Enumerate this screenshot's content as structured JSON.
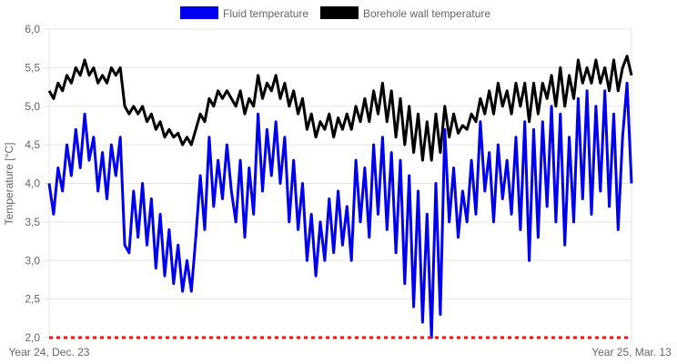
{
  "chart_data": {
    "type": "line",
    "ylabel": "Temperature [°C]",
    "ylim": [
      2.0,
      6.0
    ],
    "y_ticks": [
      "2,0",
      "2,5",
      "3,0",
      "3,5",
      "4,0",
      "4,5",
      "5,0",
      "5,5",
      "6,0"
    ],
    "x_tick_labels": [
      "Year 24, Dec. 23",
      "Year 25, Mar. 13"
    ],
    "grid": true,
    "legend_position": "top-center",
    "threshold": {
      "value": 2.0,
      "color": "#ee1111",
      "style": "dashed"
    },
    "series": [
      {
        "name": "Fluid temperature",
        "color": "#0000ee",
        "keyframes": [
          [
            0,
            4.0
          ],
          [
            2,
            3.6
          ],
          [
            4,
            4.2
          ],
          [
            6,
            3.9
          ],
          [
            8,
            4.5
          ],
          [
            10,
            4.1
          ],
          [
            12,
            4.7
          ],
          [
            14,
            4.2
          ],
          [
            16,
            4.9
          ],
          [
            18,
            4.3
          ],
          [
            20,
            4.6
          ],
          [
            22,
            3.9
          ],
          [
            24,
            4.4
          ],
          [
            26,
            3.8
          ],
          [
            28,
            4.5
          ],
          [
            30,
            4.1
          ],
          [
            32,
            4.6
          ],
          [
            34,
            3.2
          ],
          [
            36,
            3.1
          ],
          [
            38,
            3.9
          ],
          [
            40,
            3.3
          ],
          [
            42,
            4.0
          ],
          [
            44,
            3.2
          ],
          [
            46,
            3.8
          ],
          [
            48,
            2.9
          ],
          [
            50,
            3.6
          ],
          [
            52,
            2.8
          ],
          [
            54,
            3.4
          ],
          [
            56,
            2.7
          ],
          [
            58,
            3.2
          ],
          [
            60,
            2.6
          ],
          [
            62,
            3.0
          ],
          [
            64,
            2.6
          ],
          [
            66,
            3.3
          ],
          [
            68,
            4.1
          ],
          [
            70,
            3.4
          ],
          [
            72,
            4.6
          ],
          [
            74,
            3.7
          ],
          [
            76,
            4.3
          ],
          [
            78,
            3.8
          ],
          [
            80,
            4.5
          ],
          [
            82,
            3.9
          ],
          [
            84,
            3.5
          ],
          [
            86,
            4.3
          ],
          [
            88,
            3.3
          ],
          [
            90,
            4.2
          ],
          [
            92,
            3.6
          ],
          [
            94,
            4.9
          ],
          [
            96,
            3.9
          ],
          [
            98,
            4.7
          ],
          [
            100,
            4.1
          ],
          [
            102,
            4.8
          ],
          [
            104,
            4.0
          ],
          [
            106,
            4.6
          ],
          [
            108,
            3.5
          ],
          [
            110,
            4.3
          ],
          [
            112,
            3.4
          ],
          [
            114,
            4.0
          ],
          [
            116,
            3.0
          ],
          [
            118,
            3.6
          ],
          [
            120,
            2.8
          ],
          [
            122,
            3.5
          ],
          [
            124,
            3.0
          ],
          [
            126,
            3.8
          ],
          [
            128,
            3.1
          ],
          [
            130,
            3.9
          ],
          [
            132,
            3.2
          ],
          [
            134,
            3.7
          ],
          [
            136,
            3.0
          ],
          [
            138,
            4.3
          ],
          [
            140,
            3.5
          ],
          [
            142,
            4.2
          ],
          [
            144,
            3.3
          ],
          [
            146,
            4.5
          ],
          [
            148,
            3.6
          ],
          [
            150,
            4.6
          ],
          [
            152,
            3.4
          ],
          [
            154,
            4.4
          ],
          [
            156,
            3.1
          ],
          [
            158,
            4.3
          ],
          [
            160,
            2.7
          ],
          [
            162,
            4.1
          ],
          [
            164,
            2.4
          ],
          [
            166,
            3.9
          ],
          [
            168,
            2.2
          ],
          [
            170,
            3.6
          ],
          [
            172,
            2.0
          ],
          [
            174,
            4.0
          ],
          [
            176,
            2.3
          ],
          [
            178,
            4.7
          ],
          [
            180,
            3.5
          ],
          [
            182,
            4.2
          ],
          [
            184,
            3.3
          ],
          [
            186,
            3.9
          ],
          [
            188,
            3.5
          ],
          [
            190,
            4.3
          ],
          [
            192,
            3.6
          ],
          [
            194,
            4.8
          ],
          [
            196,
            3.9
          ],
          [
            198,
            4.4
          ],
          [
            200,
            3.5
          ],
          [
            202,
            4.5
          ],
          [
            204,
            3.8
          ],
          [
            206,
            4.3
          ],
          [
            208,
            3.6
          ],
          [
            210,
            4.6
          ],
          [
            212,
            3.4
          ],
          [
            214,
            4.8
          ],
          [
            216,
            3.0
          ],
          [
            218,
            4.7
          ],
          [
            220,
            3.3
          ],
          [
            222,
            4.8
          ],
          [
            224,
            3.7
          ],
          [
            226,
            5.0
          ],
          [
            228,
            3.5
          ],
          [
            230,
            4.9
          ],
          [
            232,
            3.2
          ],
          [
            234,
            4.6
          ],
          [
            236,
            3.5
          ],
          [
            238,
            5.1
          ],
          [
            240,
            3.8
          ],
          [
            242,
            5.2
          ],
          [
            244,
            3.6
          ],
          [
            246,
            5.0
          ],
          [
            248,
            3.9
          ],
          [
            250,
            5.2
          ],
          [
            252,
            3.7
          ],
          [
            254,
            4.9
          ],
          [
            256,
            3.4
          ],
          [
            258,
            4.6
          ],
          [
            260,
            5.3
          ],
          [
            262,
            4.0
          ]
        ]
      },
      {
        "name": "Borehole wall temperature",
        "color": "#000000",
        "keyframes": [
          [
            0,
            5.2
          ],
          [
            2,
            5.1
          ],
          [
            4,
            5.3
          ],
          [
            6,
            5.2
          ],
          [
            8,
            5.4
          ],
          [
            10,
            5.3
          ],
          [
            12,
            5.5
          ],
          [
            14,
            5.4
          ],
          [
            16,
            5.6
          ],
          [
            18,
            5.4
          ],
          [
            20,
            5.5
          ],
          [
            22,
            5.3
          ],
          [
            24,
            5.4
          ],
          [
            26,
            5.3
          ],
          [
            28,
            5.5
          ],
          [
            30,
            5.4
          ],
          [
            32,
            5.5
          ],
          [
            34,
            5.0
          ],
          [
            36,
            4.9
          ],
          [
            38,
            5.0
          ],
          [
            40,
            4.9
          ],
          [
            42,
            5.0
          ],
          [
            44,
            4.8
          ],
          [
            46,
            4.9
          ],
          [
            48,
            4.7
          ],
          [
            50,
            4.8
          ],
          [
            52,
            4.6
          ],
          [
            54,
            4.7
          ],
          [
            56,
            4.6
          ],
          [
            58,
            4.65
          ],
          [
            60,
            4.5
          ],
          [
            62,
            4.6
          ],
          [
            64,
            4.5
          ],
          [
            66,
            4.7
          ],
          [
            68,
            4.9
          ],
          [
            70,
            4.8
          ],
          [
            72,
            5.1
          ],
          [
            74,
            5.0
          ],
          [
            76,
            5.2
          ],
          [
            78,
            5.1
          ],
          [
            80,
            5.2
          ],
          [
            82,
            5.1
          ],
          [
            84,
            5.0
          ],
          [
            86,
            5.2
          ],
          [
            88,
            4.9
          ],
          [
            90,
            5.1
          ],
          [
            92,
            5.0
          ],
          [
            94,
            5.4
          ],
          [
            96,
            5.1
          ],
          [
            98,
            5.3
          ],
          [
            100,
            5.2
          ],
          [
            102,
            5.4
          ],
          [
            104,
            5.1
          ],
          [
            106,
            5.3
          ],
          [
            108,
            5.0
          ],
          [
            110,
            5.2
          ],
          [
            112,
            4.9
          ],
          [
            114,
            5.1
          ],
          [
            116,
            4.7
          ],
          [
            118,
            4.9
          ],
          [
            120,
            4.6
          ],
          [
            122,
            4.8
          ],
          [
            124,
            4.7
          ],
          [
            126,
            4.9
          ],
          [
            128,
            4.6
          ],
          [
            130,
            4.85
          ],
          [
            132,
            4.7
          ],
          [
            134,
            4.9
          ],
          [
            136,
            4.7
          ],
          [
            138,
            5.0
          ],
          [
            140,
            4.8
          ],
          [
            142,
            5.1
          ],
          [
            144,
            4.8
          ],
          [
            146,
            5.2
          ],
          [
            148,
            4.9
          ],
          [
            150,
            5.3
          ],
          [
            152,
            4.8
          ],
          [
            154,
            5.2
          ],
          [
            156,
            4.6
          ],
          [
            158,
            5.1
          ],
          [
            160,
            4.5
          ],
          [
            162,
            5.0
          ],
          [
            164,
            4.4
          ],
          [
            166,
            4.9
          ],
          [
            168,
            4.3
          ],
          [
            170,
            4.8
          ],
          [
            172,
            4.3
          ],
          [
            174,
            4.9
          ],
          [
            176,
            4.4
          ],
          [
            178,
            5.0
          ],
          [
            180,
            4.6
          ],
          [
            182,
            4.9
          ],
          [
            184,
            4.65
          ],
          [
            186,
            4.75
          ],
          [
            188,
            4.7
          ],
          [
            190,
            4.9
          ],
          [
            192,
            4.8
          ],
          [
            194,
            5.1
          ],
          [
            196,
            4.9
          ],
          [
            198,
            5.2
          ],
          [
            200,
            4.9
          ],
          [
            202,
            5.3
          ],
          [
            204,
            5.0
          ],
          [
            206,
            5.2
          ],
          [
            208,
            4.9
          ],
          [
            210,
            5.3
          ],
          [
            212,
            5.0
          ],
          [
            214,
            5.3
          ],
          [
            216,
            4.8
          ],
          [
            218,
            5.3
          ],
          [
            220,
            4.9
          ],
          [
            222,
            5.3
          ],
          [
            224,
            5.1
          ],
          [
            226,
            5.4
          ],
          [
            228,
            5.0
          ],
          [
            230,
            5.5
          ],
          [
            232,
            5.0
          ],
          [
            234,
            5.4
          ],
          [
            236,
            5.1
          ],
          [
            238,
            5.6
          ],
          [
            240,
            5.3
          ],
          [
            242,
            5.5
          ],
          [
            244,
            5.3
          ],
          [
            246,
            5.6
          ],
          [
            248,
            5.3
          ],
          [
            250,
            5.5
          ],
          [
            252,
            5.2
          ],
          [
            254,
            5.6
          ],
          [
            256,
            5.2
          ],
          [
            258,
            5.5
          ],
          [
            260,
            5.65
          ],
          [
            262,
            5.4
          ]
        ]
      }
    ]
  }
}
